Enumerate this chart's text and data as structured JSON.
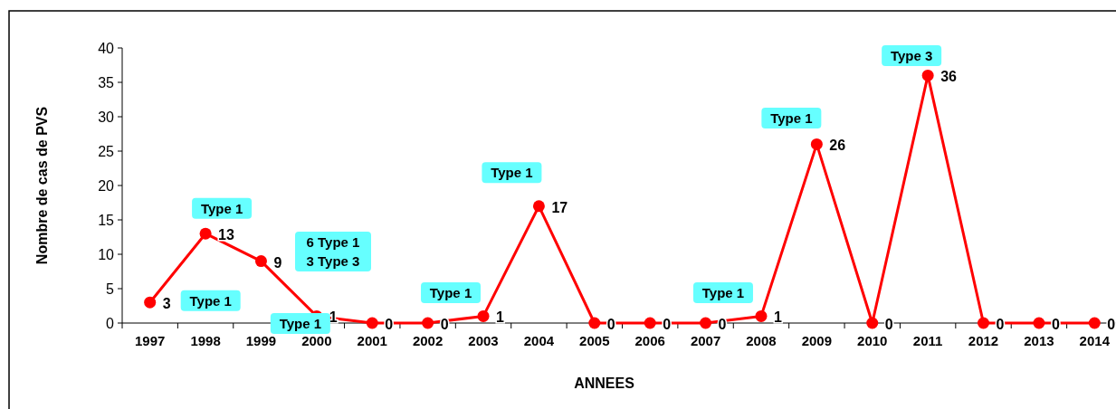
{
  "chart_data": {
    "type": "line",
    "xlabel": "ANNEES",
    "ylabel": "Nombre de cas de PVS",
    "categories": [
      "1997",
      "1998",
      "1999",
      "2000",
      "2001",
      "2002",
      "2003",
      "2004",
      "2005",
      "2006",
      "2007",
      "2008",
      "2009",
      "2010",
      "2011",
      "2012",
      "2013",
      "2014"
    ],
    "series": [
      {
        "color": "#ff0000",
        "values": [
          3,
          13,
          9,
          1,
          0,
          0,
          1,
          17,
          0,
          0,
          0,
          1,
          26,
          0,
          36,
          0,
          0,
          0
        ]
      }
    ],
    "ylim": [
      0,
      40
    ],
    "yticks": [
      0,
      5,
      10,
      15,
      20,
      25,
      30,
      35,
      40
    ],
    "grid": false,
    "marker": "circle",
    "line_style": "solid",
    "data_labels": true,
    "annotations": [
      {
        "text": "Type 1",
        "x": "1997",
        "y": 3
      },
      {
        "text": "Type 1",
        "x": "1998",
        "y": 13
      },
      "6 Type 1\n3 Type 3",
      {
        "text": "Type 1",
        "x": "2000",
        "y": 1
      },
      {
        "text": "Type 1",
        "x": "2003",
        "y": 1
      },
      {
        "text": "Type 1",
        "x": "2004",
        "y": 17
      },
      {
        "text": "Type 1",
        "x": "2008",
        "y": 1
      },
      {
        "text": "Type 1",
        "x": "2009",
        "y": 26
      },
      {
        "text": "Type 3",
        "x": "2011",
        "y": 36
      }
    ]
  }
}
